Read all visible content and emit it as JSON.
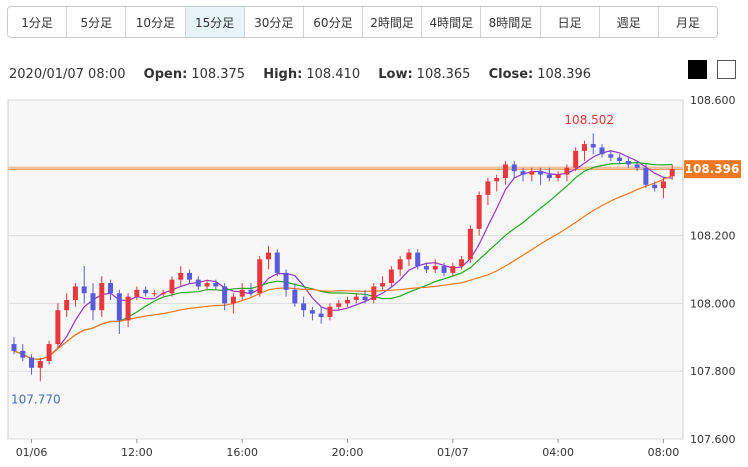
{
  "tabs": [
    {
      "label": "1分足"
    },
    {
      "label": "5分足"
    },
    {
      "label": "10分足"
    },
    {
      "label": "15分足",
      "active": true
    },
    {
      "label": "30分足"
    },
    {
      "label": "60分足"
    },
    {
      "label": "2時間足"
    },
    {
      "label": "4時間足"
    },
    {
      "label": "8時間足"
    },
    {
      "label": "日足"
    },
    {
      "label": "週足"
    },
    {
      "label": "月足"
    }
  ],
  "ohlc": {
    "datetime": "2020/01/07 08:00",
    "open_label": "Open:",
    "open": "108.375",
    "high_label": "High:",
    "high": "108.410",
    "low_label": "Low:",
    "low": "108.365",
    "close_label": "Close:",
    "close": "108.396"
  },
  "chart_data": {
    "type": "candlestick",
    "ylim": [
      107.6,
      108.6
    ],
    "y_ticks": [
      "108.600",
      "108.400",
      "108.200",
      "108.000",
      "107.800",
      "107.600"
    ],
    "x_ticks": [
      {
        "label": "01/06",
        "index": 2
      },
      {
        "label": "12:00",
        "index": 14
      },
      {
        "label": "16:00",
        "index": 26
      },
      {
        "label": "20:00",
        "index": 38
      },
      {
        "label": "01/07",
        "index": 50
      },
      {
        "label": "04:00",
        "index": 62
      },
      {
        "label": "08:00",
        "index": 74
      }
    ],
    "current_price": "108.396",
    "max_label": "108.502",
    "min_label": "107.770",
    "colors": {
      "up": "#e8383d",
      "down": "#5a5adc",
      "line_fast": "#9932cc",
      "line_mid": "#22aa22",
      "line_slow": "#f07820",
      "price_tag": "#f07820"
    },
    "candles": [
      [
        107.88,
        107.9,
        107.85,
        107.86
      ],
      [
        107.86,
        107.88,
        107.83,
        107.84
      ],
      [
        107.84,
        107.85,
        107.79,
        107.81
      ],
      [
        107.81,
        107.84,
        107.77,
        107.83
      ],
      [
        107.83,
        107.89,
        107.82,
        107.88
      ],
      [
        107.88,
        108.0,
        107.87,
        107.98
      ],
      [
        107.98,
        108.03,
        107.96,
        108.01
      ],
      [
        108.01,
        108.06,
        107.99,
        108.05
      ],
      [
        108.05,
        108.11,
        108.0,
        108.03
      ],
      [
        108.03,
        108.06,
        107.95,
        107.98
      ],
      [
        107.98,
        108.08,
        107.96,
        108.06
      ],
      [
        108.06,
        108.07,
        108.01,
        108.03
      ],
      [
        108.03,
        108.04,
        107.91,
        107.95
      ],
      [
        107.95,
        108.03,
        107.93,
        108.02
      ],
      [
        108.02,
        108.05,
        108.01,
        108.04
      ],
      [
        108.04,
        108.05,
        108.02,
        108.03
      ],
      [
        108.03,
        108.04,
        108.02,
        108.03
      ],
      [
        108.03,
        108.04,
        108.02,
        108.03
      ],
      [
        108.03,
        108.08,
        108.02,
        108.07
      ],
      [
        108.07,
        108.11,
        108.05,
        108.09
      ],
      [
        108.09,
        108.1,
        108.06,
        108.07
      ],
      [
        108.07,
        108.08,
        108.04,
        108.05
      ],
      [
        108.05,
        108.07,
        108.04,
        108.06
      ],
      [
        108.06,
        108.07,
        108.04,
        108.05
      ],
      [
        108.05,
        108.06,
        107.98,
        108.0
      ],
      [
        108.0,
        108.03,
        107.97,
        108.02
      ],
      [
        108.02,
        108.06,
        108.01,
        108.04
      ],
      [
        108.04,
        108.06,
        108.02,
        108.03
      ],
      [
        108.03,
        108.14,
        108.02,
        108.13
      ],
      [
        108.13,
        108.17,
        108.1,
        108.15
      ],
      [
        108.15,
        108.16,
        108.08,
        108.09
      ],
      [
        108.09,
        108.1,
        108.02,
        108.04
      ],
      [
        108.04,
        108.06,
        107.99,
        108.0
      ],
      [
        108.0,
        108.02,
        107.96,
        107.98
      ],
      [
        107.98,
        107.99,
        107.95,
        107.97
      ],
      [
        107.97,
        107.99,
        107.94,
        107.96
      ],
      [
        107.96,
        108.0,
        107.95,
        107.99
      ],
      [
        107.99,
        108.01,
        107.98,
        108.0
      ],
      [
        108.0,
        108.02,
        107.99,
        108.01
      ],
      [
        108.01,
        108.03,
        108.0,
        108.02
      ],
      [
        108.02,
        108.04,
        108.0,
        108.01
      ],
      [
        108.01,
        108.06,
        108.0,
        108.05
      ],
      [
        108.05,
        108.08,
        108.04,
        108.06
      ],
      [
        108.06,
        108.11,
        108.05,
        108.1
      ],
      [
        108.1,
        108.14,
        108.08,
        108.13
      ],
      [
        108.13,
        108.16,
        108.11,
        108.15
      ],
      [
        108.15,
        108.16,
        108.1,
        108.11
      ],
      [
        108.11,
        108.12,
        108.09,
        108.1
      ],
      [
        108.1,
        108.13,
        108.09,
        108.11
      ],
      [
        108.11,
        108.12,
        108.08,
        108.09
      ],
      [
        108.09,
        108.12,
        108.08,
        108.11
      ],
      [
        108.11,
        108.14,
        108.1,
        108.13
      ],
      [
        108.13,
        108.23,
        108.12,
        108.22
      ],
      [
        108.22,
        108.33,
        108.2,
        108.32
      ],
      [
        108.32,
        108.37,
        108.29,
        108.36
      ],
      [
        108.36,
        108.38,
        108.33,
        108.37
      ],
      [
        108.37,
        108.42,
        108.35,
        108.41
      ],
      [
        108.41,
        108.42,
        108.37,
        108.39
      ],
      [
        108.39,
        108.4,
        108.36,
        108.38
      ],
      [
        108.38,
        108.4,
        108.36,
        108.39
      ],
      [
        108.39,
        108.4,
        108.35,
        108.38
      ],
      [
        108.38,
        108.4,
        108.36,
        108.37
      ],
      [
        108.37,
        108.39,
        108.36,
        108.38
      ],
      [
        108.38,
        108.41,
        108.36,
        108.4
      ],
      [
        108.4,
        108.46,
        108.39,
        108.45
      ],
      [
        108.45,
        108.48,
        108.42,
        108.47
      ],
      [
        108.47,
        108.502,
        108.44,
        108.46
      ],
      [
        108.46,
        108.47,
        108.43,
        108.44
      ],
      [
        108.44,
        108.45,
        108.42,
        108.43
      ],
      [
        108.43,
        108.44,
        108.41,
        108.42
      ],
      [
        108.42,
        108.43,
        108.4,
        108.41
      ],
      [
        108.41,
        108.42,
        108.39,
        108.4
      ],
      [
        108.4,
        108.41,
        108.34,
        108.35
      ],
      [
        108.35,
        108.36,
        108.33,
        108.34
      ],
      [
        108.34,
        108.37,
        108.31,
        108.36
      ],
      [
        108.375,
        108.41,
        108.365,
        108.396
      ]
    ]
  }
}
